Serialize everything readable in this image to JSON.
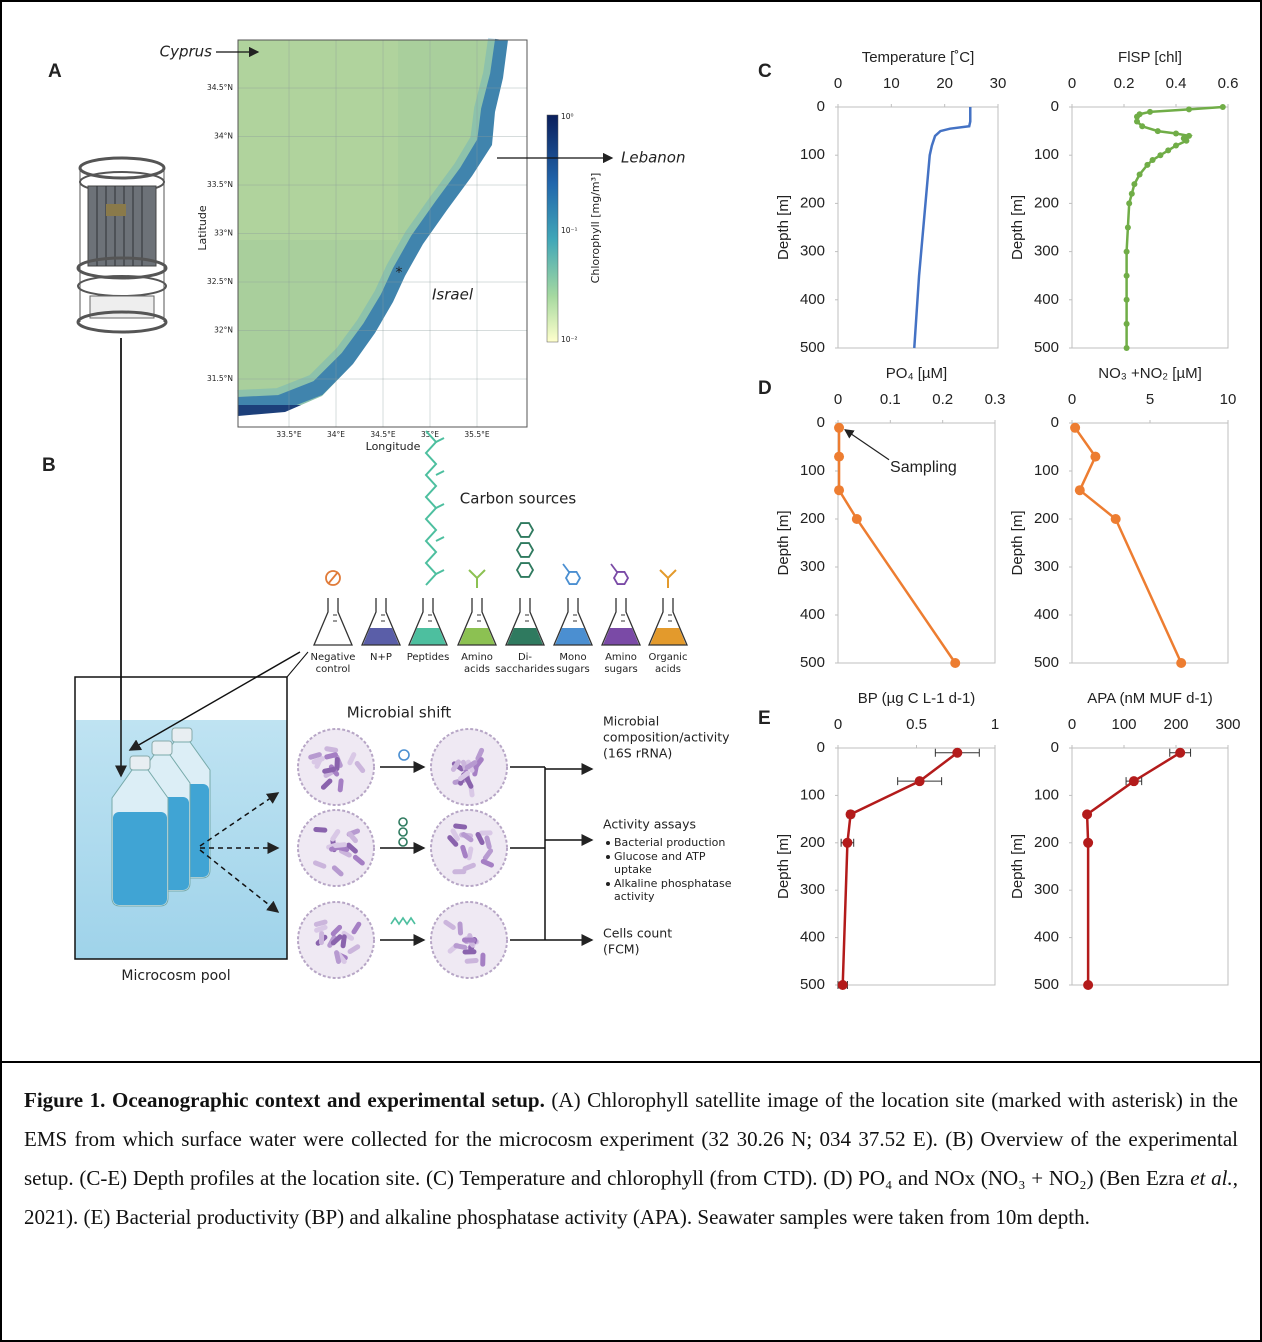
{
  "panel_labels": {
    "a": "A",
    "b": "B",
    "c": "C",
    "d": "D",
    "e": "E"
  },
  "map": {
    "labels": {
      "cyprus": "Cyprus",
      "lebanon": "Lebanon",
      "israel": "Israel",
      "site": "*"
    },
    "x_label": "Longitude",
    "y_label": "Latitude",
    "lat_ticks": [
      "34.5°N",
      "34°N",
      "33.5°N",
      "33°N",
      "32.5°N",
      "32°N",
      "31.5°N"
    ],
    "lon_ticks": [
      "33.5°E",
      "34°E",
      "34.5°E",
      "35°E",
      "35.5°E"
    ],
    "colorbar_label": "Chlorophyll [mg/m³]",
    "colorbar_ticks": [
      "10⁰",
      "10⁻¹",
      "10⁻²"
    ]
  },
  "diagram": {
    "carbon_sources": "Carbon sources",
    "flasks": [
      [
        "Negative",
        "control"
      ],
      [
        "N+P"
      ],
      [
        "Peptides"
      ],
      [
        "Amino",
        "acids"
      ],
      [
        "Di-",
        "saccharides"
      ],
      [
        "Mono",
        "sugars"
      ],
      [
        "Amino",
        "sugars"
      ],
      [
        "Organic",
        "acids"
      ]
    ],
    "microbial_shift": "Microbial shift",
    "outputs": [
      [
        "Microbial",
        "composition/activity",
        "(16S rRNA)"
      ],
      [
        "Activity assays"
      ],
      [
        "Cells count",
        "(FCM)"
      ]
    ],
    "assays": [
      [
        "Bacterial production"
      ],
      [
        "Glucose and ATP",
        "uptake"
      ],
      [
        "Alkaline phosphatase",
        "activity"
      ]
    ],
    "pool": "Microcosm pool"
  },
  "chart_data": [
    {
      "type": "line",
      "title": "Temperature [˚C]",
      "y_label": "Depth [m]",
      "x": [
        24.8,
        24.8,
        24.8,
        24.8,
        24.6,
        21,
        19.2,
        18.2,
        17.6,
        17.2,
        16.8,
        16.4,
        16,
        15.6,
        15.2,
        14.9,
        14.6,
        14.3
      ],
      "y": [
        0,
        10,
        20,
        30,
        40,
        45,
        50,
        60,
        80,
        100,
        150,
        200,
        250,
        300,
        350,
        400,
        450,
        500
      ],
      "xlim": [
        0,
        30
      ],
      "xticks": [
        0,
        10,
        20,
        30
      ],
      "ylim": [
        0,
        500
      ],
      "yticks": [
        0,
        100,
        200,
        300,
        400,
        500
      ],
      "y_inverted": true,
      "color": "#4472c4",
      "markers": false
    },
    {
      "type": "line",
      "title": "FlSP [chl]",
      "y_label": "Depth [m]",
      "x": [
        0.58,
        0.45,
        0.3,
        0.26,
        0.25,
        0.25,
        0.27,
        0.33,
        0.4,
        0.45,
        0.43,
        0.44,
        0.4,
        0.37,
        0.34,
        0.31,
        0.29,
        0.26,
        0.24,
        0.23,
        0.22,
        0.215,
        0.21,
        0.21,
        0.21,
        0.21,
        0.21
      ],
      "y": [
        0,
        5,
        10,
        15,
        20,
        30,
        40,
        50,
        55,
        60,
        65,
        70,
        80,
        90,
        100,
        110,
        120,
        140,
        160,
        180,
        200,
        250,
        300,
        350,
        400,
        450,
        500
      ],
      "xlim": [
        0,
        0.6
      ],
      "xticks": [
        0,
        0.2,
        0.4,
        0.6
      ],
      "ylim": [
        0,
        500
      ],
      "yticks": [
        0,
        100,
        200,
        300,
        400,
        500
      ],
      "y_inverted": true,
      "color": "#70ad47",
      "markers": true
    },
    {
      "type": "line",
      "title": "PO₄ [µM]",
      "y_label": "Depth [m]",
      "x": [
        0.002,
        0.002,
        0.002,
        0.036,
        0.224
      ],
      "y": [
        10,
        70,
        140,
        200,
        500
      ],
      "xlim": [
        0,
        0.3
      ],
      "xticks": [
        0,
        0.1,
        0.2,
        0.3
      ],
      "ylim": [
        0,
        500
      ],
      "yticks": [
        0,
        100,
        200,
        300,
        400,
        500
      ],
      "y_inverted": true,
      "color": "#ed7d31",
      "markers": true,
      "annotation": "Sampling"
    },
    {
      "type": "line",
      "title": "NO₃ +NO₂ [µM]",
      "y_label": "Depth [m]",
      "x": [
        0.2,
        1.5,
        0.5,
        2.8,
        7.0
      ],
      "y": [
        10,
        70,
        140,
        200,
        500
      ],
      "xlim": [
        0,
        10
      ],
      "xticks": [
        0,
        5,
        10
      ],
      "ylim": [
        0,
        500
      ],
      "yticks": [
        0,
        100,
        200,
        300,
        400,
        500
      ],
      "y_inverted": true,
      "color": "#ed7d31",
      "markers": true
    },
    {
      "type": "line",
      "title": "BP (µg C L-1 d-1)",
      "y_label": "Depth [m]",
      "x": [
        0.76,
        0.52,
        0.08,
        0.06,
        0.03
      ],
      "errors": [
        0.14,
        0.14,
        0.02,
        0.04,
        0.03
      ],
      "y": [
        10,
        70,
        140,
        200,
        500
      ],
      "xlim": [
        0,
        1
      ],
      "xticks": [
        0,
        0.5,
        1
      ],
      "ylim": [
        0,
        500
      ],
      "yticks": [
        0,
        100,
        200,
        300,
        400,
        500
      ],
      "y_inverted": true,
      "color": "#b31b1b",
      "markers": true
    },
    {
      "type": "line",
      "title": "APA (nM MUF d-1)",
      "y_label": "Depth [m]",
      "x": [
        208,
        119,
        29,
        31,
        31
      ],
      "errors": [
        20,
        15,
        3,
        3,
        3
      ],
      "y": [
        10,
        70,
        140,
        200,
        500
      ],
      "xlim": [
        0,
        300
      ],
      "xticks": [
        0,
        100,
        200,
        300
      ],
      "ylim": [
        0,
        500
      ],
      "yticks": [
        0,
        100,
        200,
        300,
        400,
        500
      ],
      "y_inverted": true,
      "color": "#b31b1b",
      "markers": true
    }
  ],
  "caption": {
    "title": "Figure 1. Oceanographic context and experimental setup.",
    "text_1": " (A) Chlorophyll satellite image of the location site (marked with asterisk) in the EMS from which surface water were collected for the microcosm experiment (32 30.26 N; 034 37.52 E). (B) Overview of the experimental setup. (C-E) Depth profiles at the location site. (C) Temperature and chlorophyll (from CTD). (D) PO₄ and NOx (NO₃ + NO₂) (Ben Ezra ",
    "italic": "et al.",
    "text_2": ", 2021). (E) Bacterial productivity (BP) and alkaline phosphatase activity (APA). Seawater samples were taken from 10m depth."
  }
}
